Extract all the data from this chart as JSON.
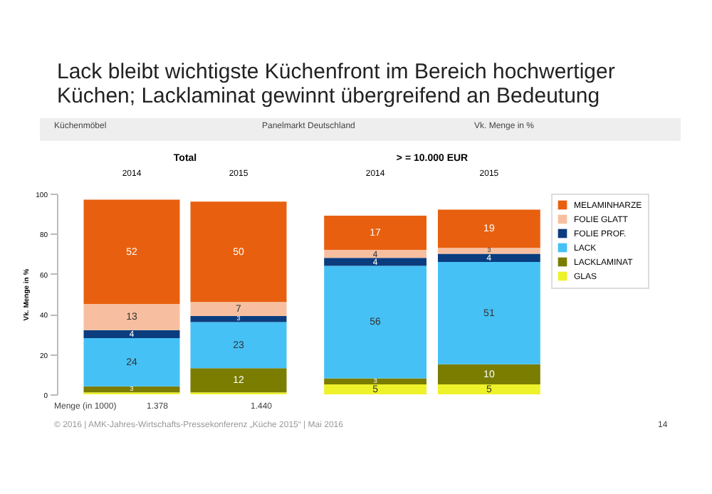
{
  "chart_data": [
    {
      "type": "bar",
      "title": "Lack bleibt wichtigste Küchenfront im Bereich hochwertiger Küchen; Lacklaminat gewinnt übergreifend an Bedeutung",
      "subtitle": "Total",
      "ylabel": "Vk. Menge in %",
      "categories": [
        "2014",
        "2015"
      ],
      "stacked": true,
      "ylim": [
        0,
        100
      ],
      "yticks": [
        0,
        20,
        40,
        60,
        80,
        100
      ],
      "legend": false,
      "series": [
        {
          "color": "#eef22a",
          "values": [
            1,
            1
          ],
          "value_labels": [
            null,
            null
          ]
        },
        {
          "color": "#7a7d00",
          "values": [
            3,
            12
          ],
          "value_labels": [
            "3",
            "12"
          ]
        },
        {
          "color": "#45c1f5",
          "values": [
            24,
            23
          ],
          "value_labels": [
            "24",
            "23"
          ]
        },
        {
          "color": "#0b3d7e",
          "values": [
            4,
            3
          ],
          "value_labels": [
            "4",
            "3"
          ]
        },
        {
          "color": "#f7bfa0",
          "values": [
            13,
            7
          ],
          "value_labels": [
            "13",
            "7"
          ]
        },
        {
          "color": "#e8600f",
          "values": [
            52,
            50
          ],
          "value_labels": [
            "52",
            "50"
          ]
        }
      ],
      "annotations": [
        "Küchenmöbel",
        "Panelmarkt Deutschland",
        "Vk. Menge in %",
        "Menge (in 1000)",
        "1.378",
        "1.440",
        "© 2016 | AMK-Jahres-Wirtschafts-Pressekonferenz „Küche 2015“ | Mai 2016",
        "14"
      ]
    },
    {
      "type": "bar",
      "subtitle": "> = 10.000 EUR",
      "categories": [
        "2014",
        "2015"
      ],
      "stacked": true,
      "tick_labels": "x",
      "legend": "right",
      "series": [
        {
          "name": "GLAS",
          "color": "#eef22a",
          "values": [
            5,
            5
          ],
          "value_labels": [
            "5",
            "5"
          ]
        },
        {
          "name": "LACKLAMINAT",
          "color": "#7a7d00",
          "values": [
            3,
            10
          ],
          "value_labels": [
            "3",
            "10"
          ]
        },
        {
          "name": "LACK",
          "color": "#45c1f5",
          "values": [
            56,
            51
          ],
          "value_labels": [
            "56",
            "51"
          ]
        },
        {
          "name": "FOLIE PROF.",
          "color": "#0b3d7e",
          "values": [
            4,
            4
          ],
          "value_labels": [
            "4",
            "4"
          ]
        },
        {
          "name": "FOLIE GLATT",
          "color": "#f7bfa0",
          "values": [
            4,
            3
          ],
          "value_labels": [
            "4",
            "3"
          ]
        },
        {
          "name": "MELAMINHARZE",
          "color": "#e8600f",
          "values": [
            17,
            19
          ],
          "value_labels": [
            "17",
            "19"
          ]
        }
      ]
    }
  ]
}
